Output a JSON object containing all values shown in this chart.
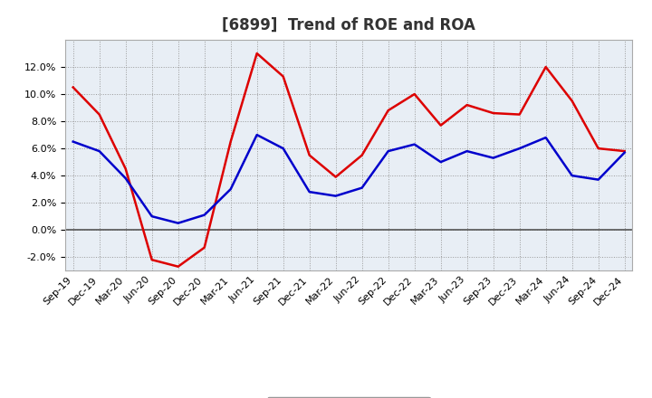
{
  "title": "[6899]  Trend of ROE and ROA",
  "x_labels": [
    "Sep-19",
    "Dec-19",
    "Mar-20",
    "Jun-20",
    "Sep-20",
    "Dec-20",
    "Mar-21",
    "Jun-21",
    "Sep-21",
    "Dec-21",
    "Mar-22",
    "Jun-22",
    "Sep-22",
    "Dec-22",
    "Mar-23",
    "Jun-23",
    "Sep-23",
    "Dec-23",
    "Mar-24",
    "Jun-24",
    "Sep-24",
    "Dec-24"
  ],
  "roe": [
    10.5,
    8.5,
    4.5,
    -2.2,
    -2.7,
    -1.3,
    6.5,
    13.0,
    11.3,
    5.5,
    3.9,
    5.5,
    8.8,
    10.0,
    7.7,
    9.2,
    8.6,
    8.5,
    12.0,
    9.5,
    6.0,
    5.8
  ],
  "roa": [
    6.5,
    5.8,
    3.8,
    1.0,
    0.5,
    1.1,
    3.0,
    7.0,
    6.0,
    2.8,
    2.5,
    3.1,
    5.8,
    6.3,
    5.0,
    5.8,
    5.3,
    6.0,
    6.8,
    4.0,
    3.7,
    5.7
  ],
  "roe_color": "#dd0000",
  "roa_color": "#0000cc",
  "ylim": [
    -3.0,
    14.0
  ],
  "yticks": [
    -2.0,
    0.0,
    2.0,
    4.0,
    6.0,
    8.0,
    10.0,
    12.0
  ],
  "background_color": "#ffffff",
  "grid_color": "#999999",
  "plot_bg_color": "#e8eef5",
  "title_fontsize": 12,
  "legend_fontsize": 10,
  "tick_fontsize": 8,
  "line_width": 1.8
}
